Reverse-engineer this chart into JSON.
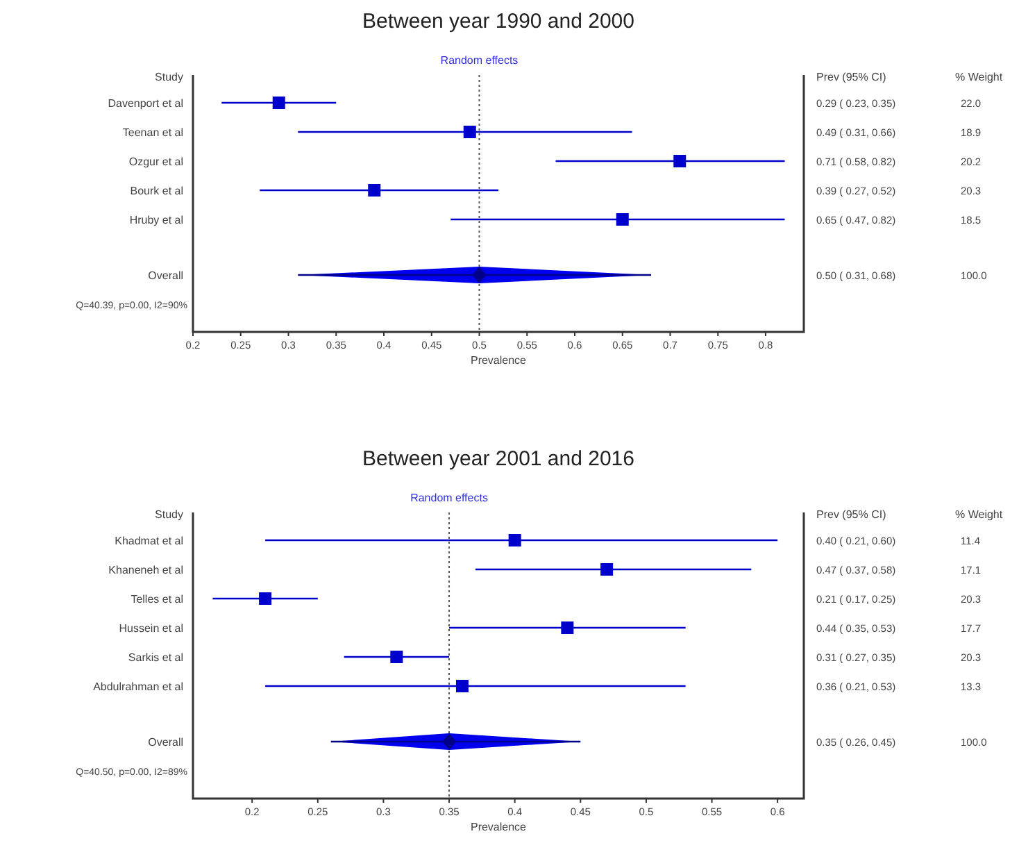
{
  "chart_data": [
    {
      "type": "scatter",
      "orientation": "horizontal",
      "title": "Between year 1990 and 2000",
      "xlabel": "Prevalence",
      "ylabel": "Study",
      "categories": [
        "Davenport et al",
        "Teenan et al",
        "Ozgur et al",
        "Bourk et al",
        "Hruby et al",
        "Overall"
      ],
      "xlim": [
        0.2,
        0.84
      ],
      "xticks": [
        0.2,
        0.25,
        0.3,
        0.35,
        0.4,
        0.45,
        0.5,
        0.55,
        0.6,
        0.65,
        0.7,
        0.75,
        0.8
      ],
      "series": [
        {
          "marker": "square",
          "color": "#0000cc",
          "values": [
            0.29,
            0.49,
            0.71,
            0.39,
            0.65,
            null
          ],
          "errors": [
            [
              0.23,
              0.35
            ],
            [
              0.31,
              0.66
            ],
            [
              0.58,
              0.82
            ],
            [
              0.27,
              0.52
            ],
            [
              0.47,
              0.82
            ],
            null
          ],
          "value_labels": [
            "0.29 ( 0.23, 0.35)",
            "0.49 ( 0.31, 0.66)",
            "0.71 ( 0.58, 0.82)",
            "0.39 ( 0.27, 0.52)",
            "0.65 ( 0.47, 0.82)",
            null
          ]
        },
        {
          "marker": "diamond",
          "color": "#000088",
          "values": [
            null,
            null,
            null,
            null,
            null,
            0.5
          ],
          "errors": [
            null,
            null,
            null,
            null,
            null,
            [
              0.31,
              0.68
            ]
          ]
        }
      ],
      "ref_lines": [
        {
          "axis": "x",
          "value": 0.5,
          "color": "#555555",
          "line_style": "dotted"
        }
      ],
      "annotations": [
        "Random effects",
        "Prev (95% CI)",
        "% Weight",
        "Q=40.39, p=0.00, I2=90%",
        "0.50 ( 0.31, 0.68)",
        "22.0",
        "18.9",
        "20.2",
        "20.3",
        "18.5",
        "100.0"
      ],
      "grid": false
    },
    {
      "type": "scatter",
      "orientation": "horizontal",
      "title": "Between year 2001 and 2016",
      "xlabel": "Prevalence",
      "ylabel": "Study",
      "categories": [
        "Khadmat et al",
        "Khaneneh et al",
        "Telles et al",
        "Hussein et al",
        "Sarkis et al",
        "Abdulrahman et al",
        "Overall"
      ],
      "xlim": [
        0.155,
        0.62
      ],
      "xticks": [
        0.2,
        0.25,
        0.3,
        0.35,
        0.4,
        0.45,
        0.5,
        0.55,
        0.6
      ],
      "series": [
        {
          "marker": "square",
          "color": "#0000cc",
          "values": [
            0.4,
            0.47,
            0.21,
            0.44,
            0.31,
            0.36,
            null
          ],
          "errors": [
            [
              0.21,
              0.6
            ],
            [
              0.37,
              0.58
            ],
            [
              0.17,
              0.25
            ],
            [
              0.35,
              0.53
            ],
            [
              0.27,
              0.35
            ],
            [
              0.21,
              0.53
            ],
            null
          ],
          "value_labels": [
            "0.40 ( 0.21, 0.60)",
            "0.47 ( 0.37, 0.58)",
            "0.21 ( 0.17, 0.25)",
            "0.44 ( 0.35, 0.53)",
            "0.31 ( 0.27, 0.35)",
            "0.36 ( 0.21, 0.53)",
            null
          ]
        },
        {
          "marker": "diamond",
          "color": "#000088",
          "values": [
            null,
            null,
            null,
            null,
            null,
            null,
            0.35
          ],
          "errors": [
            null,
            null,
            null,
            null,
            null,
            null,
            [
              0.26,
              0.45
            ]
          ]
        }
      ],
      "ref_lines": [
        {
          "axis": "x",
          "value": 0.35,
          "color": "#555555",
          "line_style": "dotted"
        }
      ],
      "annotations": [
        "Random effects",
        "Prev (95% CI)",
        "% Weight",
        "Q=40.50, p=0.00, I2=89%",
        "0.35 ( 0.26, 0.45)",
        "11.4",
        "17.1",
        "20.3",
        "17.7",
        "20.3",
        "13.3",
        "100.0"
      ],
      "grid": false
    }
  ]
}
